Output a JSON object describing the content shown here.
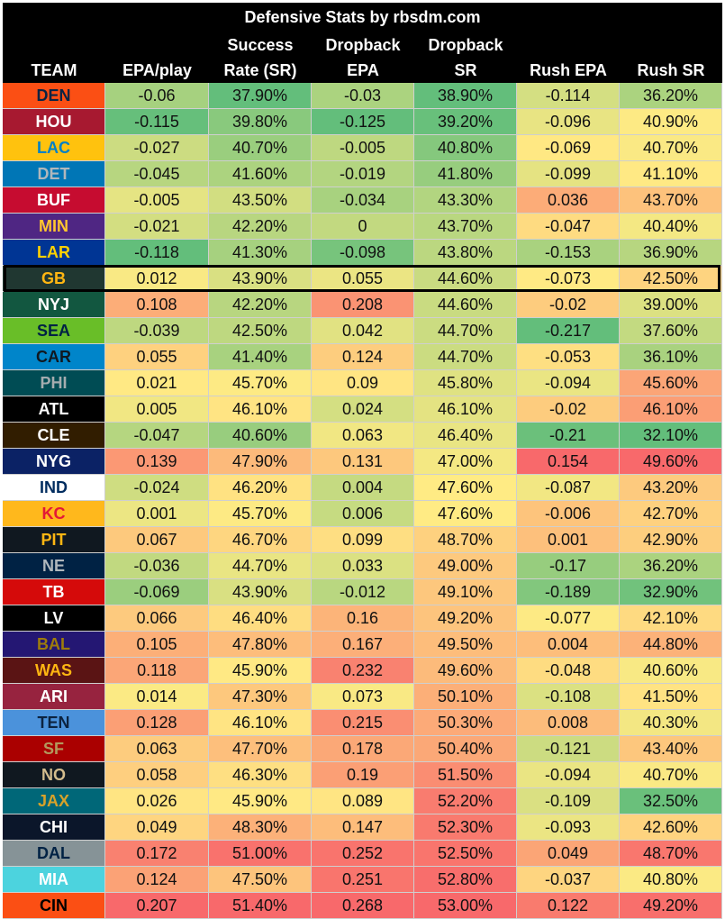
{
  "chart_data": {
    "type": "table",
    "title": "Defensive Stats by rbsdm.com",
    "columns": [
      {
        "key": "team",
        "label_lines": [
          "TEAM"
        ]
      },
      {
        "key": "epa_play",
        "label_lines": [
          "EPA/play"
        ]
      },
      {
        "key": "sr",
        "label_lines": [
          "Success",
          "Rate (SR)"
        ]
      },
      {
        "key": "db_epa",
        "label_lines": [
          "Dropback",
          "EPA"
        ]
      },
      {
        "key": "db_sr",
        "label_lines": [
          "Dropback",
          "SR"
        ]
      },
      {
        "key": "rush_epa",
        "label_lines": [
          "Rush EPA"
        ]
      },
      {
        "key": "rush_sr",
        "label_lines": [
          "Rush SR"
        ]
      }
    ],
    "rows": [
      [
        "DEN",
        "-0.06",
        "37.90%",
        "-0.03",
        "38.90%",
        "-0.114",
        "36.20%"
      ],
      [
        "HOU",
        "-0.115",
        "39.80%",
        "-0.125",
        "39.20%",
        "-0.096",
        "40.90%"
      ],
      [
        "LAC",
        "-0.027",
        "40.70%",
        "-0.005",
        "40.80%",
        "-0.069",
        "40.70%"
      ],
      [
        "DET",
        "-0.045",
        "41.60%",
        "-0.019",
        "41.80%",
        "-0.099",
        "41.10%"
      ],
      [
        "BUF",
        "-0.005",
        "43.50%",
        "-0.034",
        "43.30%",
        "0.036",
        "43.70%"
      ],
      [
        "MIN",
        "-0.021",
        "42.20%",
        "0",
        "43.70%",
        "-0.047",
        "40.40%"
      ],
      [
        "LAR",
        "-0.118",
        "41.30%",
        "-0.098",
        "43.80%",
        "-0.153",
        "36.90%"
      ],
      [
        "GB",
        "0.012",
        "43.90%",
        "0.055",
        "44.60%",
        "-0.073",
        "42.50%"
      ],
      [
        "NYJ",
        "0.108",
        "42.20%",
        "0.208",
        "44.60%",
        "-0.02",
        "39.00%"
      ],
      [
        "SEA",
        "-0.039",
        "42.50%",
        "0.042",
        "44.70%",
        "-0.217",
        "37.60%"
      ],
      [
        "CAR",
        "0.055",
        "41.40%",
        "0.124",
        "44.70%",
        "-0.053",
        "36.10%"
      ],
      [
        "PHI",
        "0.021",
        "45.70%",
        "0.09",
        "45.80%",
        "-0.094",
        "45.60%"
      ],
      [
        "ATL",
        "0.005",
        "46.10%",
        "0.024",
        "46.10%",
        "-0.02",
        "46.10%"
      ],
      [
        "CLE",
        "-0.047",
        "40.60%",
        "0.063",
        "46.40%",
        "-0.21",
        "32.10%"
      ],
      [
        "NYG",
        "0.139",
        "47.90%",
        "0.131",
        "47.00%",
        "0.154",
        "49.60%"
      ],
      [
        "IND",
        "-0.024",
        "46.20%",
        "0.004",
        "47.60%",
        "-0.087",
        "43.20%"
      ],
      [
        "KC",
        "0.001",
        "45.70%",
        "0.006",
        "47.60%",
        "-0.006",
        "42.70%"
      ],
      [
        "PIT",
        "0.067",
        "46.70%",
        "0.099",
        "48.70%",
        "0.001",
        "42.90%"
      ],
      [
        "NE",
        "-0.036",
        "44.70%",
        "0.033",
        "49.00%",
        "-0.17",
        "36.20%"
      ],
      [
        "TB",
        "-0.069",
        "43.90%",
        "-0.012",
        "49.10%",
        "-0.189",
        "32.90%"
      ],
      [
        "LV",
        "0.066",
        "46.40%",
        "0.16",
        "49.20%",
        "-0.077",
        "42.10%"
      ],
      [
        "BAL",
        "0.105",
        "47.80%",
        "0.167",
        "49.50%",
        "0.004",
        "44.80%"
      ],
      [
        "WAS",
        "0.118",
        "45.90%",
        "0.232",
        "49.60%",
        "-0.048",
        "40.60%"
      ],
      [
        "ARI",
        "0.014",
        "47.30%",
        "0.073",
        "50.10%",
        "-0.108",
        "41.50%"
      ],
      [
        "TEN",
        "0.128",
        "46.10%",
        "0.215",
        "50.30%",
        "0.008",
        "40.30%"
      ],
      [
        "SF",
        "0.063",
        "47.70%",
        "0.178",
        "50.40%",
        "-0.121",
        "43.40%"
      ],
      [
        "NO",
        "0.058",
        "46.30%",
        "0.19",
        "51.50%",
        "-0.094",
        "40.70%"
      ],
      [
        "JAX",
        "0.026",
        "45.90%",
        "0.089",
        "52.20%",
        "-0.109",
        "32.50%"
      ],
      [
        "CHI",
        "0.049",
        "48.30%",
        "0.147",
        "52.30%",
        "-0.093",
        "42.60%"
      ],
      [
        "DAL",
        "0.172",
        "51.00%",
        "0.252",
        "52.50%",
        "0.049",
        "48.70%"
      ],
      [
        "MIA",
        "0.124",
        "47.50%",
        "0.251",
        "52.80%",
        "-0.037",
        "40.80%"
      ],
      [
        "CIN",
        "0.207",
        "51.40%",
        "0.268",
        "53.00%",
        "0.122",
        "49.20%"
      ]
    ],
    "highlighted_team": "GB",
    "color_scale": {
      "good": "#63be7b",
      "mid": "#ffeb84",
      "bad": "#f8696b",
      "note": "lower values shown green, higher values red"
    },
    "team_colors": {
      "DEN": {
        "bg": "#fb4f14",
        "fg": "#0a2343"
      },
      "HOU": {
        "bg": "#a71930",
        "fg": "#ffffff"
      },
      "LAC": {
        "bg": "#ffc20e",
        "fg": "#0080c6"
      },
      "DET": {
        "bg": "#0076b6",
        "fg": "#b0b7bc"
      },
      "BUF": {
        "bg": "#c60c30",
        "fg": "#ffffff"
      },
      "MIN": {
        "bg": "#4f2683",
        "fg": "#ffc62f"
      },
      "LAR": {
        "bg": "#003594",
        "fg": "#ffd100"
      },
      "GB": {
        "bg": "#203731",
        "fg": "#ffb612"
      },
      "NYJ": {
        "bg": "#125740",
        "fg": "#ffffff"
      },
      "SEA": {
        "bg": "#69be28",
        "fg": "#002244"
      },
      "CAR": {
        "bg": "#0085ca",
        "fg": "#101820"
      },
      "PHI": {
        "bg": "#004c54",
        "fg": "#a5acaf"
      },
      "ATL": {
        "bg": "#000000",
        "fg": "#ffffff"
      },
      "CLE": {
        "bg": "#311d00",
        "fg": "#ffffff"
      },
      "NYG": {
        "bg": "#0b2265",
        "fg": "#ffffff"
      },
      "IND": {
        "bg": "#ffffff",
        "fg": "#002c5f"
      },
      "KC": {
        "bg": "#ffb81c",
        "fg": "#e31837"
      },
      "PIT": {
        "bg": "#101820",
        "fg": "#ffb612"
      },
      "NE": {
        "bg": "#002244",
        "fg": "#b0b7bc"
      },
      "TB": {
        "bg": "#d50a0a",
        "fg": "#ffffff"
      },
      "LV": {
        "bg": "#000000",
        "fg": "#ffffff"
      },
      "BAL": {
        "bg": "#241773",
        "fg": "#9e7c0c"
      },
      "WAS": {
        "bg": "#5a1414",
        "fg": "#ffb612"
      },
      "ARI": {
        "bg": "#97233f",
        "fg": "#ffffff"
      },
      "TEN": {
        "bg": "#4b92db",
        "fg": "#0c2340"
      },
      "SF": {
        "bg": "#aa0000",
        "fg": "#b3995d"
      },
      "NO": {
        "bg": "#101820",
        "fg": "#d3bc8d"
      },
      "JAX": {
        "bg": "#006778",
        "fg": "#d7a22a"
      },
      "CHI": {
        "bg": "#0b162a",
        "fg": "#ffffff"
      },
      "DAL": {
        "bg": "#869397",
        "fg": "#002244"
      },
      "MIA": {
        "bg": "#4cd3de",
        "fg": "#ffffff"
      },
      "CIN": {
        "bg": "#fb4f14",
        "fg": "#000000"
      }
    }
  }
}
